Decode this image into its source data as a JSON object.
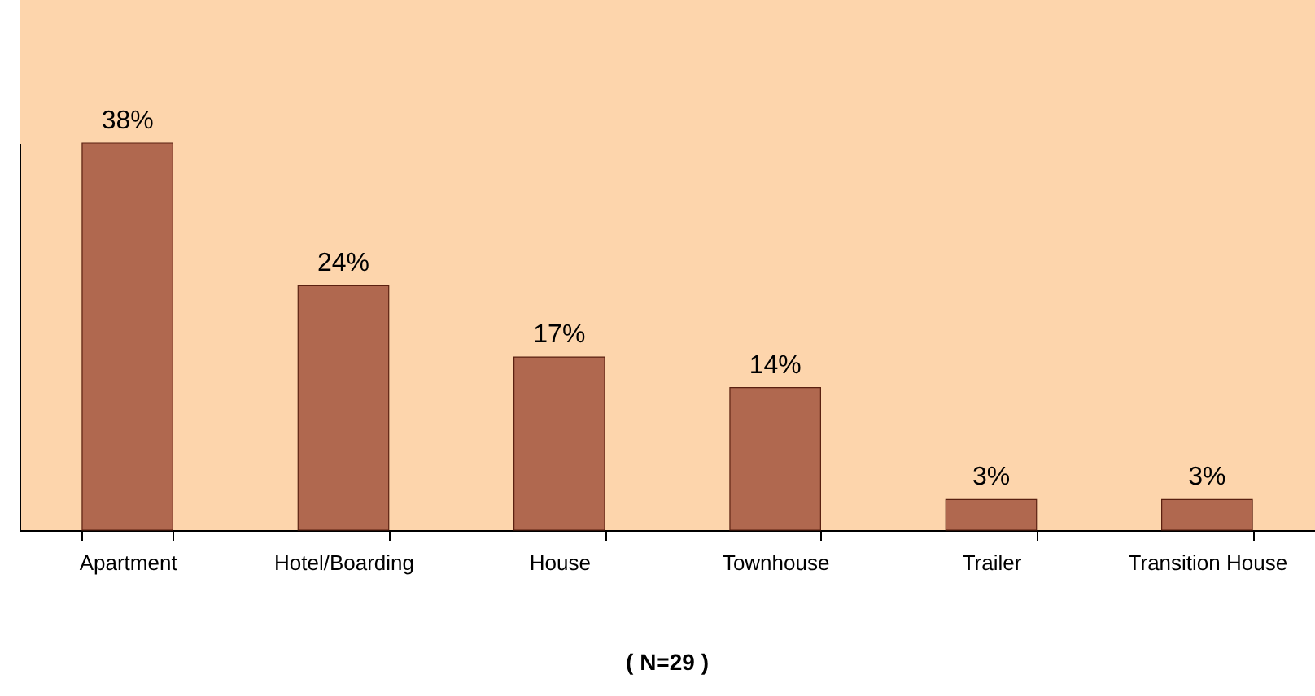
{
  "chart_data": {
    "type": "bar",
    "categories": [
      "Apartment",
      "Hotel/Boarding",
      "House",
      "Townhouse",
      "Trailer",
      "Transition House"
    ],
    "values": [
      38,
      24,
      17,
      14,
      3,
      3
    ],
    "value_labels": [
      "38%",
      "24%",
      "17%",
      "14%",
      "3%",
      "3%"
    ],
    "color": "#b0684f",
    "grid": false,
    "annotations": [
      "( N=29 )"
    ]
  }
}
